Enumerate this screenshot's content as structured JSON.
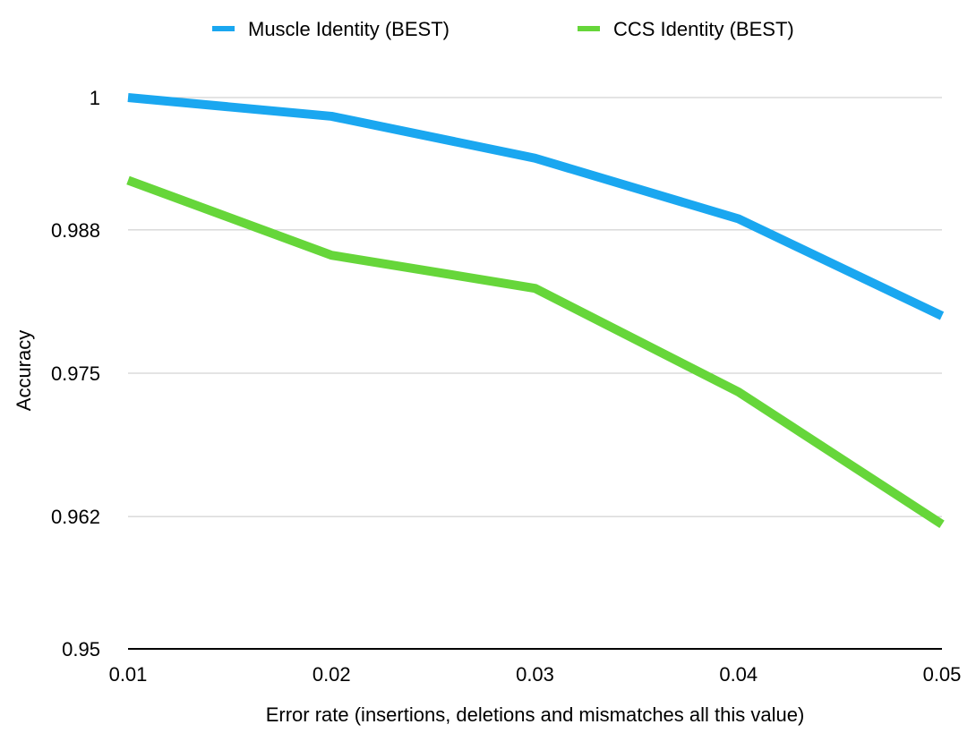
{
  "chart_data": {
    "type": "line",
    "title": "",
    "xlabel": "Error rate (insertions, deletions and mismatches all this value)",
    "ylabel": "Accuracy",
    "x": [
      0.01,
      0.02,
      0.03,
      0.04,
      0.05
    ],
    "x_tick_labels": [
      "0.01",
      "0.02",
      "0.03",
      "0.04",
      "0.05"
    ],
    "ylim": [
      0.95,
      1.0
    ],
    "y_ticks": [
      0.95,
      0.962,
      0.975,
      0.988,
      1.0
    ],
    "y_tick_labels": [
      "0.95",
      "0.962",
      "0.975",
      "0.988",
      "1"
    ],
    "grid": true,
    "legend_position": "top",
    "series": [
      {
        "name": "Muscle Identity (BEST)",
        "color": "#1aa7f0",
        "values": [
          1.0,
          0.9983,
          0.9945,
          0.989,
          0.9802
        ]
      },
      {
        "name": "CCS Identity (BEST)",
        "color": "#66d63a",
        "values": [
          0.9925,
          0.9857,
          0.9827,
          0.9733,
          0.9613
        ]
      }
    ]
  }
}
